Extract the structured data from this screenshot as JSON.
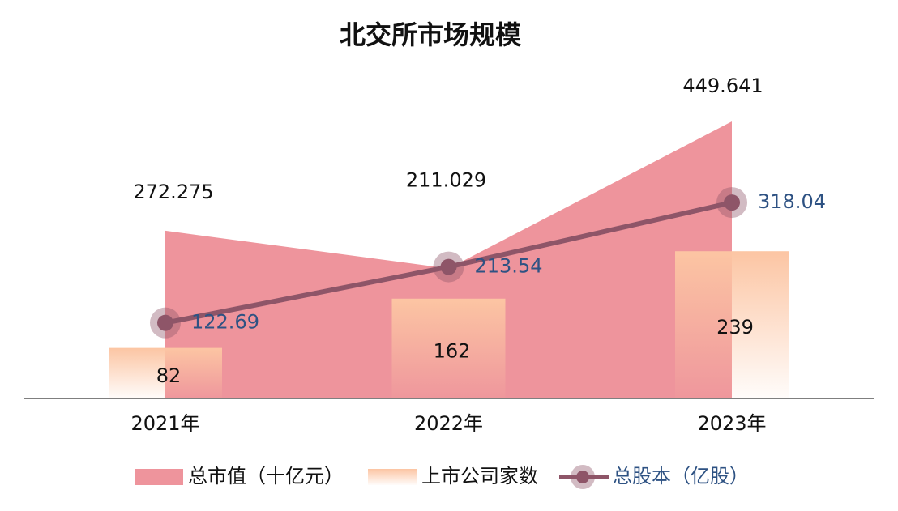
{
  "chart_data": {
    "type": "combo",
    "title": "北交所市场规模",
    "categories": [
      "2021年",
      "2022年",
      "2023年"
    ],
    "series": [
      {
        "name": "总市值（十亿元）",
        "type": "area",
        "color": "#ee949c",
        "values": [
          272.275,
          211.029,
          449.641
        ]
      },
      {
        "name": "上市公司家数",
        "type": "bar",
        "color": "#fcc5a3",
        "values": [
          82,
          162,
          239
        ]
      },
      {
        "name": "总股本（亿股）",
        "type": "line",
        "color": "#8e5568",
        "label_color": "#2e5283",
        "values": [
          122.69,
          213.54,
          318.04
        ]
      }
    ]
  }
}
